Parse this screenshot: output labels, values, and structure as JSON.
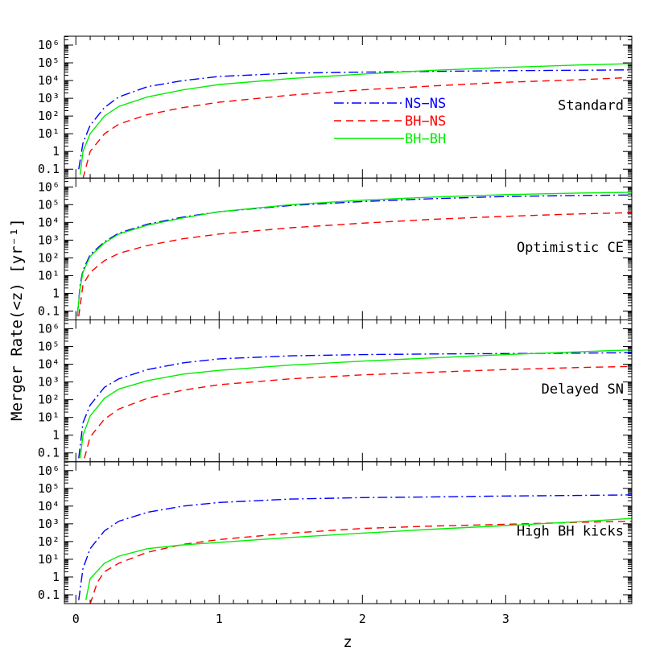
{
  "chart_data": {
    "type": "line",
    "xlabel": "z",
    "ylabel": "Merger Rate(<z) [yr⁻¹]",
    "xlim": [
      -0.08,
      3.88
    ],
    "ylim_log10": [
      -1.5,
      6.5
    ],
    "y_scale": "log",
    "x_ticks": [
      "0",
      "1",
      "2",
      "3"
    ],
    "y_ticks": [
      "0.1",
      "1",
      "10¹",
      "10²",
      "10³",
      "10⁴",
      "10⁵",
      "10⁶"
    ],
    "colors": {
      "NS-NS": "#0000ff",
      "BH-NS": "#ff0000",
      "BH-BH": "#00ee00"
    },
    "line_styles": {
      "NS-NS": "dash-dot",
      "BH-NS": "dashed",
      "BH-BH": "solid"
    },
    "legend": {
      "placement": "inside top panel, center",
      "entries": [
        "NS−NS",
        "BH−NS",
        "BH−BH"
      ]
    },
    "panels": [
      {
        "label": "Standard",
        "series": [
          {
            "name": "NS−NS",
            "x": [
              0.02,
              0.05,
              0.1,
              0.2,
              0.3,
              0.5,
              0.75,
              1.0,
              1.5,
              2.0,
              2.5,
              3.0,
              3.5,
              3.88
            ],
            "y": [
              0.1,
              3,
              30,
              300,
              1200,
              4500,
              10000,
              17000,
              26000,
              30000,
              33000,
              36000,
              38000,
              40000
            ]
          },
          {
            "name": "BH−NS",
            "x": [
              0.05,
              0.1,
              0.2,
              0.3,
              0.5,
              0.75,
              1.0,
              1.5,
              2.0,
              2.5,
              3.0,
              3.5,
              3.88
            ],
            "y": [
              0.03,
              1,
              10,
              35,
              120,
              300,
              600,
              1500,
              3000,
              5000,
              8000,
              11000,
              15000
            ]
          },
          {
            "name": "BH−BH",
            "x": [
              0.03,
              0.05,
              0.1,
              0.2,
              0.3,
              0.5,
              0.75,
              1.0,
              1.5,
              2.0,
              2.5,
              3.0,
              3.5,
              3.88
            ],
            "y": [
              0.05,
              1,
              10,
              100,
              350,
              1200,
              3000,
              6000,
              13000,
              23000,
              38000,
              55000,
              75000,
              90000
            ]
          }
        ]
      },
      {
        "label": "Optimistic CE",
        "series": [
          {
            "name": "NS−NS",
            "x": [
              0.01,
              0.03,
              0.05,
              0.1,
              0.2,
              0.3,
              0.5,
              0.75,
              1.0,
              1.5,
              2.0,
              2.5,
              3.0,
              3.5,
              3.88
            ],
            "y": [
              0.05,
              3,
              20,
              150,
              800,
              2500,
              8000,
              20000,
              40000,
              90000,
              150000,
              220000,
              290000,
              330000,
              350000
            ]
          },
          {
            "name": "BH−NS",
            "x": [
              0.02,
              0.05,
              0.1,
              0.2,
              0.3,
              0.5,
              0.75,
              1.0,
              1.5,
              2.0,
              2.5,
              3.0,
              3.5,
              3.88
            ],
            "y": [
              0.05,
              3,
              15,
              70,
              180,
              500,
              1200,
              2200,
              5000,
              9000,
              15000,
              22000,
              30000,
              35000
            ]
          },
          {
            "name": "BH−BH",
            "x": [
              0.01,
              0.03,
              0.05,
              0.1,
              0.2,
              0.3,
              0.5,
              0.75,
              1.0,
              1.5,
              2.0,
              2.5,
              3.0,
              3.5,
              3.88
            ],
            "y": [
              0.05,
              2,
              15,
              120,
              700,
              2200,
              7000,
              18000,
              40000,
              100000,
              180000,
              270000,
              370000,
              450000,
              500000
            ]
          }
        ]
      },
      {
        "label": "Delayed SN",
        "series": [
          {
            "name": "NS−NS",
            "x": [
              0.02,
              0.05,
              0.1,
              0.2,
              0.3,
              0.5,
              0.75,
              1.0,
              1.5,
              2.0,
              2.5,
              3.0,
              3.5,
              3.88
            ],
            "y": [
              0.05,
              5,
              50,
              500,
              1500,
              5000,
              12000,
              20000,
              30000,
              35000,
              38000,
              40000,
              42000,
              45000
            ]
          },
          {
            "name": "BH−NS",
            "x": [
              0.06,
              0.1,
              0.2,
              0.3,
              0.5,
              0.75,
              1.0,
              1.5,
              2.0,
              2.5,
              3.0,
              3.5,
              3.88
            ],
            "y": [
              0.05,
              0.8,
              8,
              30,
              120,
              350,
              700,
              1500,
              2500,
              3600,
              5000,
              6500,
              7500
            ]
          },
          {
            "name": "BH−BH",
            "x": [
              0.03,
              0.05,
              0.1,
              0.2,
              0.3,
              0.5,
              0.75,
              1.0,
              1.5,
              2.0,
              2.5,
              3.0,
              3.5,
              3.88
            ],
            "y": [
              0.05,
              1,
              12,
              120,
              400,
              1200,
              2800,
              4500,
              9000,
              15000,
              23000,
              35000,
              50000,
              65000
            ]
          }
        ]
      },
      {
        "label": "High BH kicks",
        "series": [
          {
            "name": "NS−NS",
            "x": [
              0.02,
              0.05,
              0.1,
              0.2,
              0.3,
              0.5,
              0.75,
              1.0,
              1.5,
              2.0,
              2.5,
              3.0,
              3.5,
              3.88
            ],
            "y": [
              0.05,
              3,
              40,
              400,
              1400,
              4500,
              10000,
              16000,
              25000,
              30000,
              33000,
              37000,
              40000,
              43000
            ]
          },
          {
            "name": "BH−NS",
            "x": [
              0.1,
              0.15,
              0.2,
              0.3,
              0.5,
              0.75,
              1.0,
              1.5,
              2.0,
              2.5,
              3.0,
              3.5,
              3.88
            ],
            "y": [
              0.03,
              0.5,
              2,
              6,
              25,
              70,
              130,
              300,
              550,
              750,
              950,
              1200,
              1400
            ]
          },
          {
            "name": "BH−BH",
            "x": [
              0.07,
              0.1,
              0.2,
              0.3,
              0.5,
              0.75,
              1.0,
              1.5,
              2.0,
              2.5,
              3.0,
              3.5,
              3.88
            ],
            "y": [
              0.05,
              0.8,
              6,
              15,
              40,
              65,
              90,
              170,
              300,
              500,
              800,
              1300,
              2000
            ]
          }
        ]
      }
    ]
  }
}
